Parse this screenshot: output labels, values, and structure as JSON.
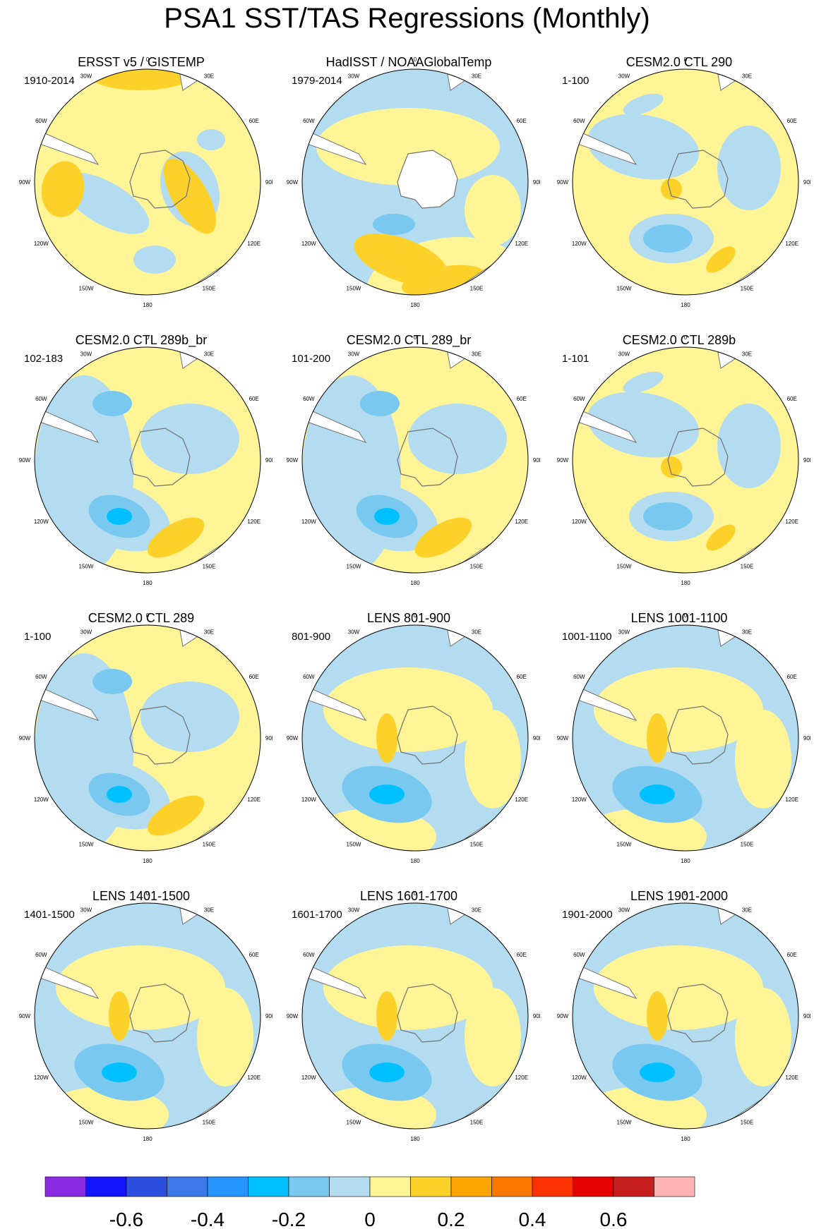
{
  "title": "PSA1 SST/TAS Regressions (Monthly)",
  "lon_labels": [
    "0",
    "30E",
    "60E",
    "90E",
    "120E",
    "150E",
    "180",
    "150W",
    "120W",
    "90W",
    "60W",
    "30W"
  ],
  "panels": [
    {
      "title": "ERSST v5 / GISTEMP",
      "period": "1910-2014",
      "variant": "obs1"
    },
    {
      "title": "HadISST / NOAAGlobalTemp",
      "period": "1979-2014",
      "variant": "obs2"
    },
    {
      "title": "CESM2.0 CTL 290",
      "period": "1-100",
      "variant": "m1"
    },
    {
      "title": "CESM2.0 CTL 289b_br",
      "period": "102-183",
      "variant": "m2"
    },
    {
      "title": "CESM2.0 CTL 289_br",
      "period": "101-200",
      "variant": "m2"
    },
    {
      "title": "CESM2.0 CTL 289b",
      "period": "1-101",
      "variant": "m1"
    },
    {
      "title": "CESM2.0 CTL 289",
      "period": "1-100",
      "variant": "m2"
    },
    {
      "title": "LENS 801-900",
      "period": "801-900",
      "variant": "m3"
    },
    {
      "title": "LENS 1001-1100",
      "period": "1001-1100",
      "variant": "m3"
    },
    {
      "title": "LENS 1401-1500",
      "period": "1401-1500",
      "variant": "m3"
    },
    {
      "title": "LENS 1601-1700",
      "period": "1601-1700",
      "variant": "m3"
    },
    {
      "title": "LENS 1901-2000",
      "period": "1901-2000",
      "variant": "m3"
    }
  ],
  "colorbar": {
    "colors": [
      "#8a2be2",
      "#1414ff",
      "#2d4fe0",
      "#3c78e8",
      "#2894ff",
      "#00c0ff",
      "#78c8f0",
      "#b4dcf0",
      "#fff596",
      "#fcd22a",
      "#fca500",
      "#fc7800",
      "#fc3200",
      "#e60000",
      "#c81e1e",
      "#ffb4b4"
    ],
    "tick_labels": [
      "-0.6",
      "-0.4",
      "-0.2",
      "0",
      "0.2",
      "0.4",
      "0.6"
    ],
    "tick_values": [
      -0.6,
      -0.4,
      -0.2,
      0,
      0.2,
      0.4,
      0.6
    ],
    "levels": [
      -0.7,
      -0.6,
      -0.5,
      -0.4,
      -0.3,
      -0.2,
      -0.1,
      0,
      0.1,
      0.2,
      0.3,
      0.4,
      0.5,
      0.6,
      0.7
    ]
  },
  "palette": {
    "neg1": "#b4dcf0",
    "neg2": "#78c8f0",
    "neg3": "#00c0ff",
    "pos1": "#fff596",
    "pos2": "#fcd22a",
    "land": "#ffffff",
    "coast": "#707070"
  }
}
